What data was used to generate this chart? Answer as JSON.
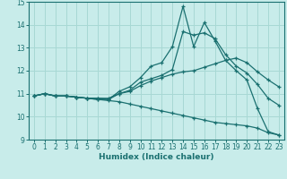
{
  "title": "",
  "xlabel": "Humidex (Indice chaleur)",
  "background_color": "#c8ecea",
  "grid_color": "#a8d8d4",
  "line_color": "#1a7070",
  "xlim": [
    -0.5,
    23.5
  ],
  "ylim": [
    9,
    15
  ],
  "yticks": [
    9,
    10,
    11,
    12,
    13,
    14,
    15
  ],
  "xticks": [
    0,
    1,
    2,
    3,
    4,
    5,
    6,
    7,
    8,
    9,
    10,
    11,
    12,
    13,
    14,
    15,
    16,
    17,
    18,
    19,
    20,
    21,
    22,
    23
  ],
  "lines": [
    {
      "x": [
        0,
        1,
        2,
        3,
        4,
        5,
        6,
        7,
        8,
        9,
        10,
        11,
        12,
        13,
        14,
        15,
        16,
        17,
        18,
        19,
        20,
        21,
        22,
        23
      ],
      "y": [
        10.9,
        11.0,
        10.9,
        10.9,
        10.85,
        10.8,
        10.75,
        10.75,
        11.1,
        11.3,
        11.7,
        12.2,
        12.35,
        13.05,
        14.8,
        13.05,
        14.1,
        13.3,
        12.45,
        12.0,
        11.6,
        10.35,
        9.35,
        9.2
      ]
    },
    {
      "x": [
        0,
        1,
        2,
        3,
        4,
        5,
        6,
        7,
        8,
        9,
        10,
        11,
        12,
        13,
        14,
        15,
        16,
        17,
        18,
        19,
        20,
        21,
        22,
        23
      ],
      "y": [
        10.9,
        11.0,
        10.9,
        10.9,
        10.85,
        10.8,
        10.8,
        10.75,
        11.0,
        11.15,
        11.5,
        11.65,
        11.8,
        12.05,
        13.7,
        13.55,
        13.65,
        13.4,
        12.7,
        12.2,
        11.9,
        11.4,
        10.8,
        10.5
      ]
    },
    {
      "x": [
        0,
        1,
        2,
        3,
        4,
        5,
        6,
        7,
        8,
        9,
        10,
        11,
        12,
        13,
        14,
        15,
        16,
        17,
        18,
        19,
        20,
        21,
        22,
        23
      ],
      "y": [
        10.9,
        11.0,
        10.9,
        10.9,
        10.85,
        10.8,
        10.8,
        10.8,
        11.0,
        11.1,
        11.35,
        11.55,
        11.7,
        11.85,
        11.95,
        12.0,
        12.15,
        12.3,
        12.45,
        12.55,
        12.35,
        11.95,
        11.6,
        11.3
      ]
    },
    {
      "x": [
        0,
        1,
        2,
        3,
        4,
        5,
        6,
        7,
        8,
        9,
        10,
        11,
        12,
        13,
        14,
        15,
        16,
        17,
        18,
        19,
        20,
        21,
        22,
        23
      ],
      "y": [
        10.9,
        11.0,
        10.9,
        10.9,
        10.85,
        10.8,
        10.75,
        10.7,
        10.65,
        10.55,
        10.45,
        10.35,
        10.25,
        10.15,
        10.05,
        9.95,
        9.85,
        9.75,
        9.7,
        9.65,
        9.6,
        9.5,
        9.3,
        9.2
      ]
    }
  ]
}
